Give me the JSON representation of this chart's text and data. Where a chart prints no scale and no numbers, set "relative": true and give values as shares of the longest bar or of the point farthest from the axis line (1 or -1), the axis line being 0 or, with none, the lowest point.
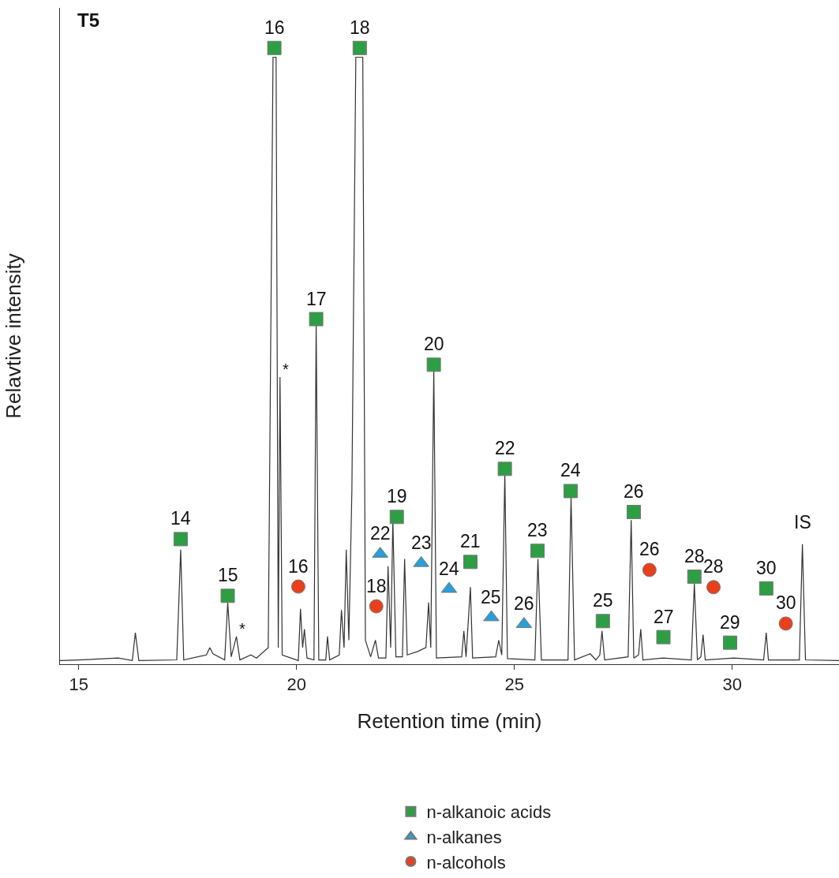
{
  "chart_data": {
    "type": "line",
    "relative": true,
    "title": "T5",
    "xlabel": "Retention time (min)",
    "ylabel": "Relavtive intensity",
    "xlim": [
      14.57,
      32.45
    ],
    "xticks": [
      15,
      20,
      25,
      30
    ],
    "legend": "bottom",
    "series": [
      {
        "color": "#333333",
        "marker": "none",
        "x": [
          14.57,
          15.0,
          15.91,
          16.23,
          16.3,
          16.38,
          17.25,
          17.34,
          17.41,
          17.93,
          18.01,
          18.08,
          18.35,
          18.42,
          18.5,
          18.62,
          18.7,
          18.95,
          19.08,
          19.35,
          19.46,
          19.53,
          19.58,
          19.62,
          19.67,
          20.04,
          20.09,
          20.14,
          20.18,
          20.24,
          20.4,
          20.45,
          20.51,
          20.67,
          20.71,
          20.76,
          20.98,
          21.03,
          21.09,
          21.14,
          21.2,
          21.27,
          21.36,
          21.52,
          21.58,
          21.7,
          21.81,
          21.88,
          22.05,
          22.1,
          22.16,
          22.21,
          22.28,
          22.43,
          22.48,
          22.54,
          22.79,
          22.97,
          23.03,
          23.08,
          23.15,
          23.21,
          23.79,
          23.84,
          23.89,
          23.99,
          24.04,
          24.57,
          24.64,
          24.71,
          24.78,
          24.84,
          25.47,
          25.54,
          25.62,
          26.23,
          26.3,
          26.38,
          26.74,
          26.87,
          26.96,
          27.01,
          27.07,
          27.61,
          27.68,
          27.74,
          27.85,
          27.9,
          27.95,
          28.41,
          29.06,
          29.13,
          29.2,
          29.28,
          29.33,
          29.38,
          30.04,
          30.72,
          30.78,
          30.83,
          31.54,
          31.61,
          31.68,
          32.45
        ],
        "values": [
          0.006,
          0.007,
          0.01,
          0.006,
          0.051,
          0.006,
          0.007,
          0.186,
          0.007,
          0.015,
          0.027,
          0.017,
          0.007,
          0.1,
          0.012,
          0.045,
          0.007,
          0.015,
          0.01,
          0.027,
          0.985,
          0.985,
          0.027,
          0.466,
          0.015,
          0.006,
          0.09,
          0.027,
          0.057,
          0.01,
          0.007,
          0.554,
          0.007,
          0.007,
          0.045,
          0.007,
          0.015,
          0.088,
          0.027,
          0.186,
          0.039,
          0.283,
          0.985,
          0.985,
          0.039,
          0.012,
          0.039,
          0.01,
          0.01,
          0.159,
          0.027,
          0.234,
          0.012,
          0.012,
          0.171,
          0.015,
          0.021,
          0.027,
          0.1,
          0.027,
          0.479,
          0.01,
          0.012,
          0.054,
          0.012,
          0.125,
          0.01,
          0.012,
          0.039,
          0.015,
          0.31,
          0.009,
          0.007,
          0.171,
          0.007,
          0.007,
          0.271,
          0.007,
          0.017,
          0.007,
          0.015,
          0.054,
          0.007,
          0.012,
          0.234,
          0.01,
          0.015,
          0.057,
          0.007,
          0.01,
          0.007,
          0.131,
          0.007,
          0.012,
          0.048,
          0.007,
          0.01,
          0.007,
          0.051,
          0.007,
          0.007,
          0.195,
          0.007,
          0.006
        ]
      },
      {
        "type": "scatter",
        "name": "n-alkanoic acids",
        "color": "#2e9e44",
        "marker": "square",
        "x": [
          17.34,
          18.42,
          19.49,
          20.45,
          21.45,
          22.3,
          23.15,
          23.99,
          24.78,
          25.53,
          26.29,
          27.03,
          27.74,
          28.42,
          29.13,
          29.95,
          30.78
        ],
        "values": [
          0.203,
          0.111,
          1.0,
          0.56,
          1.0,
          0.239,
          0.486,
          0.166,
          0.317,
          0.184,
          0.281,
          0.07,
          0.247,
          0.044,
          0.142,
          0.035,
          0.123
        ]
      },
      {
        "type": "scatter",
        "name": "n-alkanes",
        "color": "#2a9fd8",
        "marker": "triangle",
        "x": [
          21.92,
          22.86,
          23.5,
          24.47,
          25.22
        ],
        "values": [
          0.179,
          0.164,
          0.122,
          0.076,
          0.065
        ]
      },
      {
        "type": "scatter",
        "name": "n-alcohols",
        "color": "#e8401c",
        "marker": "circle",
        "x": [
          20.04,
          21.83,
          28.1,
          29.57,
          31.23
        ],
        "values": [
          0.126,
          0.094,
          0.153,
          0.125,
          0.066
        ]
      }
    ],
    "annotations": [
      {
        "text": "14",
        "x": 17.34,
        "y": 0.203
      },
      {
        "text": "15",
        "x": 18.42,
        "y": 0.111
      },
      {
        "text": "16",
        "x": 19.49,
        "y": 1.0
      },
      {
        "text": "17",
        "x": 20.45,
        "y": 0.56
      },
      {
        "text": "18",
        "x": 21.45,
        "y": 1.0
      },
      {
        "text": "19",
        "x": 22.3,
        "y": 0.239
      },
      {
        "text": "20",
        "x": 23.15,
        "y": 0.486
      },
      {
        "text": "21",
        "x": 23.99,
        "y": 0.166
      },
      {
        "text": "22",
        "x": 24.78,
        "y": 0.317
      },
      {
        "text": "23",
        "x": 25.53,
        "y": 0.184
      },
      {
        "text": "24",
        "x": 26.29,
        "y": 0.281
      },
      {
        "text": "25",
        "x": 27.03,
        "y": 0.07
      },
      {
        "text": "26",
        "x": 27.74,
        "y": 0.247
      },
      {
        "text": "27",
        "x": 28.42,
        "y": 0.044
      },
      {
        "text": "28",
        "x": 29.13,
        "y": 0.142
      },
      {
        "text": "29",
        "x": 29.95,
        "y": 0.035
      },
      {
        "text": "30",
        "x": 30.78,
        "y": 0.123
      },
      {
        "text": "22",
        "x": 21.92,
        "y": 0.179
      },
      {
        "text": "23",
        "x": 22.86,
        "y": 0.164
      },
      {
        "text": "24",
        "x": 23.5,
        "y": 0.122
      },
      {
        "text": "25",
        "x": 24.47,
        "y": 0.076
      },
      {
        "text": "26",
        "x": 25.22,
        "y": 0.065
      },
      {
        "text": "16",
        "x": 20.04,
        "y": 0.126
      },
      {
        "text": "18",
        "x": 21.83,
        "y": 0.094
      },
      {
        "text": "26",
        "x": 28.1,
        "y": 0.153
      },
      {
        "text": "28",
        "x": 29.57,
        "y": 0.125
      },
      {
        "text": "30",
        "x": 31.23,
        "y": 0.066
      },
      {
        "text": "*",
        "x": 18.62,
        "y": 0.045
      },
      {
        "text": "*",
        "x": 19.62,
        "y": 0.466
      },
      {
        "text": "IS",
        "x": 31.61,
        "y": 0.195
      }
    ]
  }
}
